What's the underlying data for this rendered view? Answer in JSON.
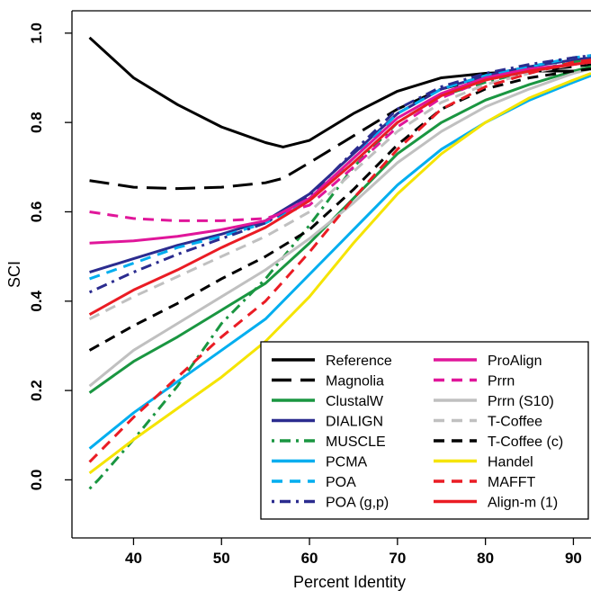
{
  "chart_data": {
    "type": "line",
    "xlabel": "Percent Identity",
    "ylabel": "SCI",
    "xlim": [
      33,
      92
    ],
    "ylim": [
      -0.13,
      1.05
    ],
    "xticks": [
      40,
      50,
      60,
      70,
      80,
      90
    ],
    "yticks": [
      0.0,
      0.2,
      0.4,
      0.6,
      0.8,
      1.0
    ],
    "ytick_labels": [
      "0.0",
      "0.2",
      "0.4",
      "0.6",
      "0.8",
      "1.0"
    ],
    "legend_position": "bottom-right",
    "grid": false,
    "series": [
      {
        "name": "Reference",
        "color": "#000000",
        "dash": "solid",
        "x": [
          35,
          40,
          45,
          50,
          55,
          57,
          60,
          65,
          70,
          75,
          80,
          85,
          90,
          92
        ],
        "y": [
          0.99,
          0.9,
          0.84,
          0.79,
          0.755,
          0.745,
          0.76,
          0.82,
          0.87,
          0.9,
          0.91,
          0.915,
          0.915,
          0.92
        ]
      },
      {
        "name": "Magnolia",
        "color": "#000000",
        "dash": "longdash",
        "x": [
          35,
          40,
          45,
          50,
          55,
          57,
          60,
          65,
          70,
          75,
          80,
          85,
          90,
          92
        ],
        "y": [
          0.67,
          0.655,
          0.652,
          0.655,
          0.665,
          0.675,
          0.71,
          0.77,
          0.83,
          0.875,
          0.9,
          0.915,
          0.925,
          0.93
        ]
      },
      {
        "name": "ClustalW",
        "color": "#1a9641",
        "dash": "solid",
        "x": [
          35,
          40,
          45,
          50,
          55,
          60,
          65,
          70,
          75,
          80,
          85,
          90,
          92
        ],
        "y": [
          0.195,
          0.265,
          0.32,
          0.38,
          0.44,
          0.53,
          0.63,
          0.73,
          0.8,
          0.85,
          0.885,
          0.915,
          0.925
        ]
      },
      {
        "name": "DIALIGN",
        "color": "#2b2c8f",
        "dash": "solid",
        "x": [
          35,
          40,
          45,
          50,
          55,
          60,
          65,
          70,
          75,
          80,
          85,
          90,
          92
        ],
        "y": [
          0.465,
          0.495,
          0.525,
          0.55,
          0.58,
          0.64,
          0.73,
          0.82,
          0.875,
          0.905,
          0.925,
          0.94,
          0.945
        ]
      },
      {
        "name": "MUSCLE",
        "color": "#1a9641",
        "dash": "dotdash",
        "x": [
          35,
          36,
          40,
          45,
          50,
          55,
          60,
          65,
          70,
          75,
          80,
          85,
          90,
          92
        ],
        "y": [
          -0.02,
          0.0,
          0.09,
          0.21,
          0.35,
          0.45,
          0.57,
          0.7,
          0.8,
          0.86,
          0.89,
          0.915,
          0.935,
          0.94
        ]
      },
      {
        "name": "PCMA",
        "color": "#00aeef",
        "dash": "solid",
        "x": [
          35,
          40,
          45,
          50,
          55,
          60,
          65,
          70,
          75,
          80,
          85,
          90,
          92
        ],
        "y": [
          0.07,
          0.15,
          0.22,
          0.29,
          0.36,
          0.46,
          0.56,
          0.66,
          0.74,
          0.8,
          0.85,
          0.89,
          0.905
        ]
      },
      {
        "name": "POA",
        "color": "#00aeef",
        "dash": "dash",
        "x": [
          35,
          40,
          45,
          50,
          55,
          60,
          65,
          70,
          75,
          80,
          85,
          90,
          92
        ],
        "y": [
          0.45,
          0.485,
          0.52,
          0.545,
          0.575,
          0.625,
          0.72,
          0.82,
          0.875,
          0.905,
          0.925,
          0.945,
          0.95
        ]
      },
      {
        "name": "POA (g,p)",
        "color": "#2b2c8f",
        "dash": "dotdash",
        "x": [
          35,
          40,
          45,
          50,
          55,
          60,
          65,
          70,
          75,
          80,
          85,
          90,
          92
        ],
        "y": [
          0.42,
          0.465,
          0.505,
          0.54,
          0.575,
          0.635,
          0.735,
          0.83,
          0.88,
          0.91,
          0.93,
          0.945,
          0.95
        ]
      },
      {
        "name": "ProAlign",
        "color": "#e0169a",
        "dash": "solid",
        "x": [
          35,
          40,
          45,
          50,
          55,
          60,
          65,
          70,
          75,
          80,
          85,
          90,
          92
        ],
        "y": [
          0.53,
          0.535,
          0.545,
          0.56,
          0.58,
          0.63,
          0.72,
          0.81,
          0.865,
          0.9,
          0.92,
          0.93,
          0.935
        ]
      },
      {
        "name": "Prrn",
        "color": "#e0169a",
        "dash": "dash",
        "x": [
          35,
          40,
          45,
          50,
          55,
          60,
          65,
          70,
          75,
          80,
          85,
          90,
          92
        ],
        "y": [
          0.6,
          0.585,
          0.58,
          0.58,
          0.585,
          0.615,
          0.7,
          0.79,
          0.855,
          0.895,
          0.915,
          0.93,
          0.935
        ]
      },
      {
        "name": "Prrn (S10)",
        "color": "#c0c0c0",
        "dash": "solid",
        "x": [
          35,
          40,
          45,
          50,
          55,
          60,
          65,
          70,
          75,
          80,
          85,
          90,
          92
        ],
        "y": [
          0.21,
          0.29,
          0.35,
          0.41,
          0.47,
          0.54,
          0.62,
          0.71,
          0.78,
          0.835,
          0.875,
          0.91,
          0.92
        ]
      },
      {
        "name": "T-Coffee",
        "color": "#c0c0c0",
        "dash": "dash",
        "x": [
          35,
          40,
          45,
          50,
          55,
          60,
          65,
          70,
          75,
          80,
          85,
          90,
          92
        ],
        "y": [
          0.36,
          0.41,
          0.455,
          0.5,
          0.545,
          0.6,
          0.69,
          0.78,
          0.845,
          0.885,
          0.91,
          0.93,
          0.935
        ]
      },
      {
        "name": "T-Coffee (c)",
        "color": "#000000",
        "dash": "dash",
        "x": [
          35,
          40,
          45,
          50,
          55,
          60,
          65,
          70,
          75,
          80,
          85,
          90,
          92
        ],
        "y": [
          0.29,
          0.345,
          0.395,
          0.45,
          0.5,
          0.56,
          0.65,
          0.75,
          0.83,
          0.875,
          0.9,
          0.915,
          0.92
        ]
      },
      {
        "name": "Handel",
        "color": "#f5e400",
        "dash": "solid",
        "x": [
          35,
          40,
          45,
          50,
          55,
          60,
          65,
          70,
          75,
          80,
          85,
          90,
          92
        ],
        "y": [
          0.015,
          0.09,
          0.16,
          0.23,
          0.31,
          0.41,
          0.53,
          0.64,
          0.73,
          0.8,
          0.855,
          0.895,
          0.91
        ]
      },
      {
        "name": "MAFFT",
        "color": "#ea1c24",
        "dash": "dash",
        "x": [
          35,
          40,
          45,
          50,
          55,
          60,
          65,
          70,
          75,
          80,
          85,
          90,
          92
        ],
        "y": [
          0.04,
          0.14,
          0.23,
          0.32,
          0.4,
          0.51,
          0.63,
          0.74,
          0.83,
          0.88,
          0.91,
          0.935,
          0.94
        ]
      },
      {
        "name": "Align-m (1)",
        "color": "#ea1c24",
        "dash": "solid",
        "x": [
          35,
          40,
          45,
          50,
          55,
          60,
          65,
          70,
          75,
          80,
          85,
          90,
          92
        ],
        "y": [
          0.37,
          0.425,
          0.47,
          0.52,
          0.565,
          0.625,
          0.71,
          0.8,
          0.86,
          0.895,
          0.915,
          0.93,
          0.935
        ]
      }
    ]
  }
}
